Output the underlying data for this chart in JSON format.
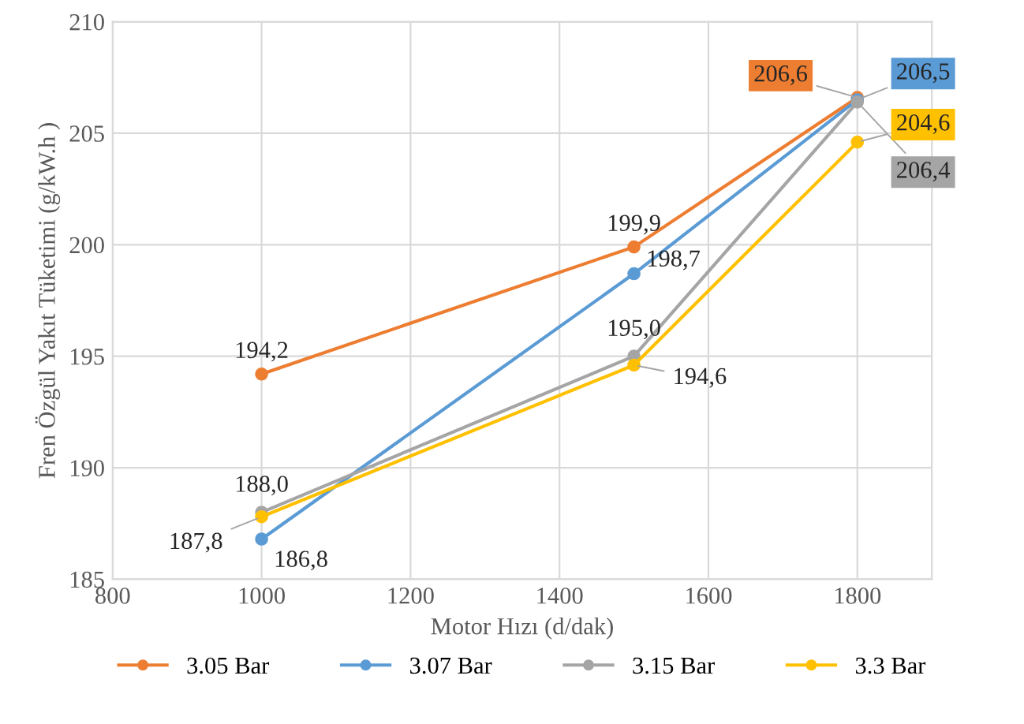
{
  "chart_data": {
    "type": "line",
    "xlabel": "Motor Hızı (d/dak)",
    "ylabel": "Fren Özgül Yakıt Tüketimi (g/kW.h )",
    "x": [
      1000,
      1500,
      1800
    ],
    "series": [
      {
        "name": "3.05 Bar",
        "color": "#ed7d31",
        "values": [
          194.2,
          199.9,
          206.6
        ],
        "value_labels": [
          "194,2",
          "199,9",
          "206,6"
        ]
      },
      {
        "name": "3.07 Bar",
        "color": "#5b9bd5",
        "values": [
          186.8,
          198.7,
          206.5
        ],
        "value_labels": [
          "186,8",
          "198,7",
          "206,5"
        ]
      },
      {
        "name": "3.15 Bar",
        "color": "#a5a5a5",
        "values": [
          188.0,
          195.0,
          206.4
        ],
        "value_labels": [
          "188,0",
          "195,0",
          "206,4"
        ]
      },
      {
        "name": "3.3 Bar",
        "color": "#ffc000",
        "values": [
          187.8,
          194.6,
          204.6
        ],
        "value_labels": [
          "187,8",
          "194,6",
          "204,6"
        ]
      }
    ],
    "xlim": [
      800,
      1900
    ],
    "xticks": [
      800,
      1000,
      1200,
      1400,
      1600,
      1800
    ],
    "ylim": [
      185,
      210
    ],
    "yticks": [
      185,
      190,
      195,
      200,
      205,
      210
    ],
    "grid": true,
    "legend": "bottom",
    "marker": "circle",
    "line_style": "solid"
  }
}
